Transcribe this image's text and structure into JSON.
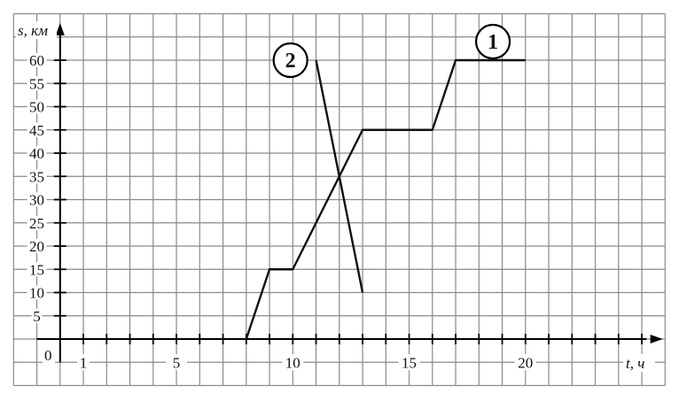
{
  "chart_data": {
    "type": "line",
    "xlabel": "t, ч",
    "ylabel": "s, км",
    "origin_label": "0",
    "xlim": [
      -2,
      26
    ],
    "ylim": [
      -10,
      70
    ],
    "x_tick_labels": [
      "1",
      "5",
      "10",
      "15",
      "20"
    ],
    "x_tick_values": [
      1,
      5,
      10,
      15,
      20
    ],
    "y_tick_labels": [
      "5",
      "10",
      "15",
      "20",
      "25",
      "30",
      "35",
      "40",
      "45",
      "50",
      "55",
      "60"
    ],
    "y_tick_values": [
      5,
      10,
      15,
      20,
      25,
      30,
      35,
      40,
      45,
      50,
      55,
      60
    ],
    "grid": true,
    "series": [
      {
        "name": "1",
        "points": [
          [
            8,
            0
          ],
          [
            9,
            15
          ],
          [
            10,
            15
          ],
          [
            13,
            45
          ],
          [
            16,
            45
          ],
          [
            17,
            60
          ],
          [
            20,
            60
          ]
        ],
        "label_at": [
          18.6,
          64
        ]
      },
      {
        "name": "2",
        "points": [
          [
            11,
            60
          ],
          [
            13,
            10
          ]
        ],
        "label_at": [
          9.9,
          60
        ]
      }
    ],
    "colors": {
      "grid": "#8a8a8a",
      "line": "#111111"
    }
  }
}
